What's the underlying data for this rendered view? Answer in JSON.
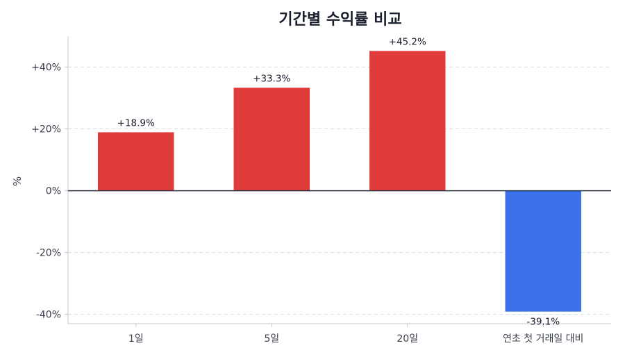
{
  "chart_data": {
    "type": "bar",
    "title": "기간별 수익률 비교",
    "xlabel": "",
    "ylabel": "%",
    "categories": [
      "1일",
      "5일",
      "20일",
      "연초 첫 거래일 대비"
    ],
    "values": [
      18.9,
      33.3,
      45.2,
      -39.1
    ],
    "data_labels": [
      "+18.9%",
      "+33.3%",
      "+45.2%",
      "-39.1%"
    ],
    "ylim": [
      -43,
      50
    ],
    "yticks": [
      -40,
      -20,
      0,
      20,
      40
    ],
    "ytick_labels": [
      "-40%",
      "-20%",
      "0%",
      "+20%",
      "+40%"
    ],
    "grid": true,
    "colors": {
      "positive": "#e03b3b",
      "negative": "#3b72eb",
      "zero_line": "#2b3340",
      "grid": "#d9dde3",
      "axis": "#c4c8cf"
    }
  }
}
